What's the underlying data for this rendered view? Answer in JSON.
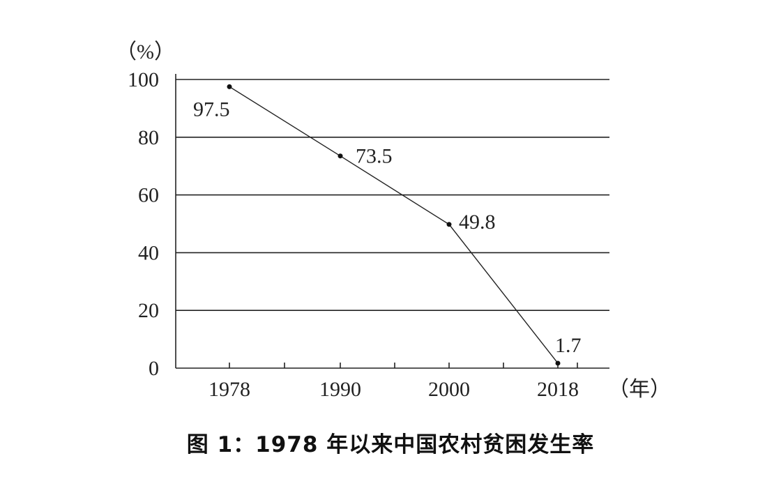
{
  "caption": "图 1：1978 年以来中国农村贫困发生率",
  "chart_data": {
    "type": "line",
    "title": "图 1：1978 年以来中国农村贫困发生率",
    "ylabel": "（%）",
    "xlabel": "（年）",
    "x": [
      1978,
      1990,
      2000,
      2018
    ],
    "categories": [
      "1978",
      "1990",
      "2000",
      "2018"
    ],
    "values": [
      97.5,
      73.5,
      49.8,
      1.7
    ],
    "data_labels": [
      "97.5",
      "73.5",
      "49.8",
      "1.7"
    ],
    "ylim": [
      0,
      100
    ],
    "yticks": [
      "0",
      "20",
      "40",
      "60",
      "80",
      "100"
    ],
    "grid": true,
    "legend": "none",
    "colors": {
      "line": "#222222",
      "point": "#111111"
    }
  }
}
